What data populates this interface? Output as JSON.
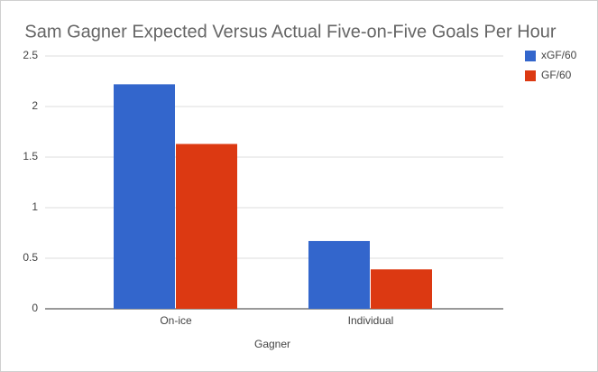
{
  "chart_data": {
    "type": "bar",
    "title": "Sam Gagner Expected Versus Actual Five-on-Five Goals Per Hour",
    "x_label": "Gagner",
    "categories": [
      "On-ice",
      "Individual"
    ],
    "series": [
      {
        "name": "xGF/60",
        "color": "#3366cc",
        "values": [
          2.22,
          0.67
        ]
      },
      {
        "name": "GF/60",
        "color": "#dc3912",
        "values": [
          1.63,
          0.39
        ]
      }
    ],
    "ylim": [
      0,
      2.5
    ],
    "yticks": [
      0,
      0.5,
      1,
      1.5,
      2,
      2.5
    ],
    "grid": true,
    "legend": "right"
  }
}
